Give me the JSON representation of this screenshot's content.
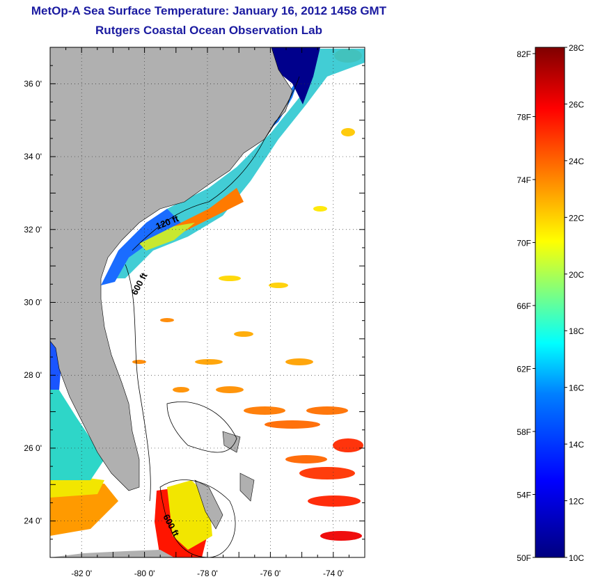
{
  "title": {
    "line1": "MetOp-A Sea Surface Temperature:  January 16, 2012 1458 GMT",
    "line2": "Rutgers Coastal Ocean Observation Lab"
  },
  "map": {
    "lon_range": [
      -83,
      -73
    ],
    "lat_range": [
      23,
      37
    ],
    "lon_ticks": [
      {
        "value": -82,
        "label": "-82 0'"
      },
      {
        "value": -80,
        "label": "-80 0'"
      },
      {
        "value": -78,
        "label": "-78 0'"
      },
      {
        "value": -76,
        "label": "-76 0'"
      },
      {
        "value": -74,
        "label": "-74 0'"
      }
    ],
    "lat_ticks": [
      {
        "value": 24,
        "label": "24 0'"
      },
      {
        "value": 26,
        "label": "26 0'"
      },
      {
        "value": 28,
        "label": "28 0'"
      },
      {
        "value": 30,
        "label": "30 0'"
      },
      {
        "value": 32,
        "label": "32 0'"
      },
      {
        "value": 34,
        "label": "34 0'"
      },
      {
        "value": 36,
        "label": "36 0'"
      }
    ],
    "grid": true,
    "land_color": "#b0b0b0",
    "contour_labels": [
      {
        "text": "120 ft"
      },
      {
        "text": "600 ft"
      },
      {
        "text": "600 ft"
      }
    ]
  },
  "colorbar": {
    "min_c": 10,
    "max_c": 28,
    "left_labels": [
      "82F",
      "78F",
      "74F",
      "70F",
      "66F",
      "62F",
      "58F",
      "54F",
      "50F"
    ],
    "right_labels": [
      "28C",
      "26C",
      "24C",
      "22C",
      "20C",
      "18C",
      "16C",
      "14C",
      "12C",
      "10C"
    ]
  }
}
